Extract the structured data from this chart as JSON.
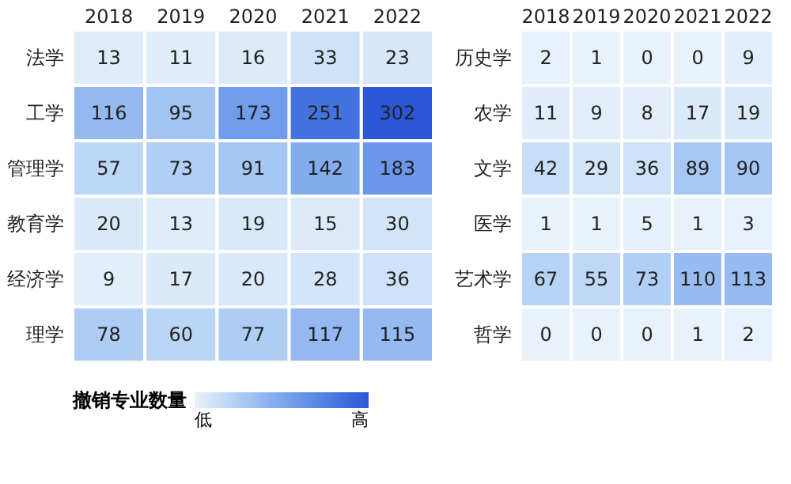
{
  "chart_data": [
    {
      "type": "heatmap",
      "categories": [
        "2018",
        "2019",
        "2020",
        "2021",
        "2022"
      ],
      "y_categories": [
        "法学",
        "工学",
        "管理学",
        "教育学",
        "经济学",
        "理学"
      ],
      "cells": [
        [
          13,
          11,
          16,
          33,
          23
        ],
        [
          116,
          95,
          173,
          251,
          302
        ],
        [
          57,
          73,
          91,
          142,
          183
        ],
        [
          20,
          13,
          19,
          15,
          30
        ],
        [
          9,
          17,
          20,
          28,
          36
        ],
        [
          78,
          60,
          77,
          117,
          115
        ]
      ],
      "data_labels": true,
      "clabel": "撤销专业数量",
      "clim": [
        0,
        302
      ],
      "cticks": [
        {
          "value": 0,
          "label": "低"
        },
        {
          "value": 302,
          "label": "高"
        }
      ]
    },
    {
      "type": "heatmap",
      "categories": [
        "2018",
        "2019",
        "2020",
        "2021",
        "2022"
      ],
      "y_categories": [
        "历史学",
        "农学",
        "文学",
        "医学",
        "艺术学",
        "哲学"
      ],
      "cells": [
        [
          2,
          1,
          0,
          0,
          9
        ],
        [
          11,
          9,
          8,
          17,
          19
        ],
        [
          42,
          29,
          36,
          89,
          90
        ],
        [
          1,
          1,
          5,
          1,
          3
        ],
        [
          67,
          55,
          73,
          110,
          113
        ],
        [
          0,
          0,
          0,
          1,
          2
        ]
      ],
      "data_labels": true
    }
  ]
}
